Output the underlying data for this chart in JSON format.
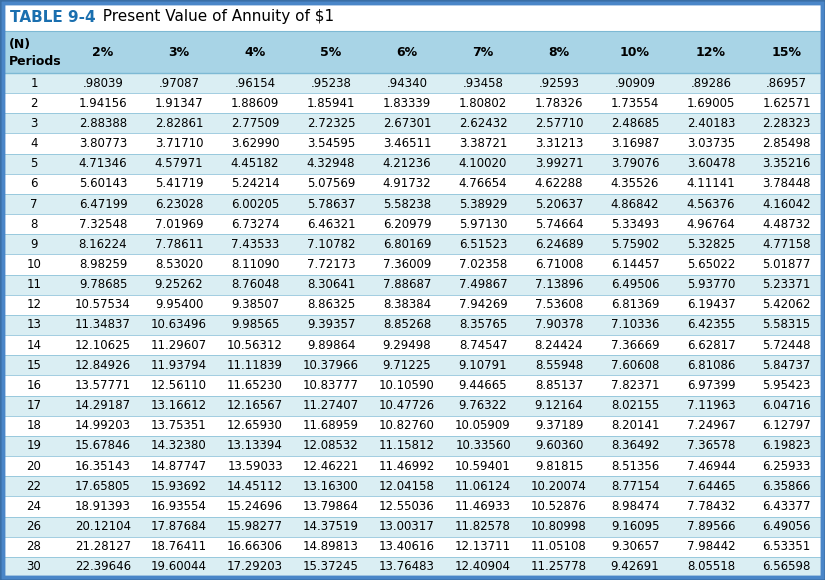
{
  "title_label": "TABLE 9-4",
  "title_text": "  Present Value of Annuity of $1",
  "col_header_line1": [
    "(N)",
    "2%",
    "3%",
    "4%",
    "5%",
    "6%",
    "7%",
    "8%",
    "10%",
    "12%",
    "15%"
  ],
  "col_header_line2": [
    "Periods",
    "",
    "",
    "",
    "",
    "",
    "",
    "",
    "",
    "",
    ""
  ],
  "rows": [
    [
      "1",
      ".98039",
      ".97087",
      ".96154",
      ".95238",
      ".94340",
      ".93458",
      ".92593",
      ".90909",
      ".89286",
      ".86957"
    ],
    [
      "2",
      "1.94156",
      "1.91347",
      "1.88609",
      "1.85941",
      "1.83339",
      "1.80802",
      "1.78326",
      "1.73554",
      "1.69005",
      "1.62571"
    ],
    [
      "3",
      "2.88388",
      "2.82861",
      "2.77509",
      "2.72325",
      "2.67301",
      "2.62432",
      "2.57710",
      "2.48685",
      "2.40183",
      "2.28323"
    ],
    [
      "4",
      "3.80773",
      "3.71710",
      "3.62990",
      "3.54595",
      "3.46511",
      "3.38721",
      "3.31213",
      "3.16987",
      "3.03735",
      "2.85498"
    ],
    [
      "5",
      "4.71346",
      "4.57971",
      "4.45182",
      "4.32948",
      "4.21236",
      "4.10020",
      "3.99271",
      "3.79076",
      "3.60478",
      "3.35216"
    ],
    [
      "6",
      "5.60143",
      "5.41719",
      "5.24214",
      "5.07569",
      "4.91732",
      "4.76654",
      "4.62288",
      "4.35526",
      "4.11141",
      "3.78448"
    ],
    [
      "7",
      "6.47199",
      "6.23028",
      "6.00205",
      "5.78637",
      "5.58238",
      "5.38929",
      "5.20637",
      "4.86842",
      "4.56376",
      "4.16042"
    ],
    [
      "8",
      "7.32548",
      "7.01969",
      "6.73274",
      "6.46321",
      "6.20979",
      "5.97130",
      "5.74664",
      "5.33493",
      "4.96764",
      "4.48732"
    ],
    [
      "9",
      "8.16224",
      "7.78611",
      "7.43533",
      "7.10782",
      "6.80169",
      "6.51523",
      "6.24689",
      "5.75902",
      "5.32825",
      "4.77158"
    ],
    [
      "10",
      "8.98259",
      "8.53020",
      "8.11090",
      "7.72173",
      "7.36009",
      "7.02358",
      "6.71008",
      "6.14457",
      "5.65022",
      "5.01877"
    ],
    [
      "11",
      "9.78685",
      "9.25262",
      "8.76048",
      "8.30641",
      "7.88687",
      "7.49867",
      "7.13896",
      "6.49506",
      "5.93770",
      "5.23371"
    ],
    [
      "12",
      "10.57534",
      "9.95400",
      "9.38507",
      "8.86325",
      "8.38384",
      "7.94269",
      "7.53608",
      "6.81369",
      "6.19437",
      "5.42062"
    ],
    [
      "13",
      "11.34837",
      "10.63496",
      "9.98565",
      "9.39357",
      "8.85268",
      "8.35765",
      "7.90378",
      "7.10336",
      "6.42355",
      "5.58315"
    ],
    [
      "14",
      "12.10625",
      "11.29607",
      "10.56312",
      "9.89864",
      "9.29498",
      "8.74547",
      "8.24424",
      "7.36669",
      "6.62817",
      "5.72448"
    ],
    [
      "15",
      "12.84926",
      "11.93794",
      "11.11839",
      "10.37966",
      "9.71225",
      "9.10791",
      "8.55948",
      "7.60608",
      "6.81086",
      "5.84737"
    ],
    [
      "16",
      "13.57771",
      "12.56110",
      "11.65230",
      "10.83777",
      "10.10590",
      "9.44665",
      "8.85137",
      "7.82371",
      "6.97399",
      "5.95423"
    ],
    [
      "17",
      "14.29187",
      "13.16612",
      "12.16567",
      "11.27407",
      "10.47726",
      "9.76322",
      "9.12164",
      "8.02155",
      "7.11963",
      "6.04716"
    ],
    [
      "18",
      "14.99203",
      "13.75351",
      "12.65930",
      "11.68959",
      "10.82760",
      "10.05909",
      "9.37189",
      "8.20141",
      "7.24967",
      "6.12797"
    ],
    [
      "19",
      "15.67846",
      "14.32380",
      "13.13394",
      "12.08532",
      "11.15812",
      "10.33560",
      "9.60360",
      "8.36492",
      "7.36578",
      "6.19823"
    ],
    [
      "20",
      "16.35143",
      "14.87747",
      "13.59033",
      "12.46221",
      "11.46992",
      "10.59401",
      "9.81815",
      "8.51356",
      "7.46944",
      "6.25933"
    ],
    [
      "22",
      "17.65805",
      "15.93692",
      "14.45112",
      "13.16300",
      "12.04158",
      "11.06124",
      "10.20074",
      "8.77154",
      "7.64465",
      "6.35866"
    ],
    [
      "24",
      "18.91393",
      "16.93554",
      "15.24696",
      "13.79864",
      "12.55036",
      "11.46933",
      "10.52876",
      "8.98474",
      "7.78432",
      "6.43377"
    ],
    [
      "26",
      "20.12104",
      "17.87684",
      "15.98277",
      "14.37519",
      "13.00317",
      "11.82578",
      "10.80998",
      "9.16095",
      "7.89566",
      "6.49056"
    ],
    [
      "28",
      "21.28127",
      "18.76411",
      "16.66306",
      "14.89813",
      "13.40616",
      "12.13711",
      "11.05108",
      "9.30657",
      "7.98442",
      "6.53351"
    ],
    [
      "30",
      "22.39646",
      "19.60044",
      "17.29203",
      "15.37245",
      "13.76483",
      "12.40904",
      "11.25778",
      "9.42691",
      "8.05518",
      "6.56598"
    ]
  ],
  "title_label_color": "#1a6faf",
  "title_text_color": "#000000",
  "title_bg": "#ffffff",
  "subheader_bg": "#a8d4e6",
  "row_bg_odd": "#daeef3",
  "row_bg_even": "#ffffff",
  "border_color": "#7db9d4",
  "outer_border_color": "#4a86c8",
  "table_bg": "#ffffff"
}
